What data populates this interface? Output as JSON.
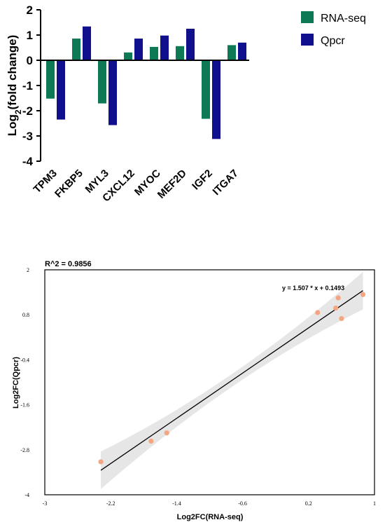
{
  "chart_data": [
    {
      "type": "bar",
      "ylabel_main": "Log",
      "ylabel_sub": "2",
      "ylabel_rest": "(fold change)",
      "xlabel": "",
      "ylim": [
        -4,
        2
      ],
      "yticks": [
        "2",
        "1",
        "0",
        "-1",
        "-2",
        "-3",
        "-4"
      ],
      "categories": [
        "TPM3",
        "FKBP5",
        "MYL3",
        "CXCL12",
        "MYOC",
        "MEF2D",
        "IGF2",
        "ITGA7"
      ],
      "series": [
        {
          "name": "RNA-seq",
          "color": "#0d7a55",
          "values": [
            -1.52,
            0.86,
            -1.71,
            0.31,
            0.53,
            0.56,
            -2.32,
            0.6
          ]
        },
        {
          "name": "Qpcr",
          "color": "#10108f",
          "values": [
            -2.35,
            1.34,
            -2.57,
            0.86,
            0.98,
            1.25,
            -3.12,
            0.7
          ]
        }
      ],
      "legend": "top-right"
    },
    {
      "type": "scatter",
      "title": "R^2 = 0.9856",
      "equation": "y = 1.507 * x + 0.1493",
      "xlabel": "Log2FC(RNA-seq)",
      "ylabel": "Log2FC(Qpcr)",
      "xlim": [
        -3,
        1
      ],
      "ylim": [
        -4,
        2
      ],
      "xticks": [
        "-3",
        "-2.2",
        "-1.4",
        "-0.6",
        "0.2",
        "1"
      ],
      "yticks": [
        "2",
        "0.8",
        "-0.4",
        "-1.6",
        "-2.8",
        "-4"
      ],
      "points": [
        {
          "x": -2.32,
          "y": -3.12
        },
        {
          "x": -1.71,
          "y": -2.57
        },
        {
          "x": -1.52,
          "y": -2.35
        },
        {
          "x": 0.31,
          "y": 0.86
        },
        {
          "x": 0.53,
          "y": 0.98
        },
        {
          "x": 0.56,
          "y": 1.25
        },
        {
          "x": 0.6,
          "y": 0.7
        },
        {
          "x": 0.86,
          "y": 1.34
        }
      ],
      "fit": {
        "slope": 1.507,
        "intercept": 0.1493,
        "x_from": -2.32,
        "x_to": 0.86
      },
      "point_color": "#f4a582",
      "line_color": "#000000",
      "band_color": "#e6e6e6"
    }
  ]
}
